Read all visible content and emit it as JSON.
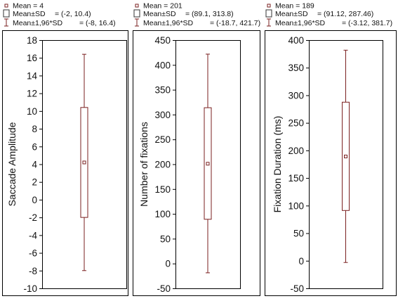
{
  "colors": {
    "box": "#7a1f1f",
    "axis": "#000000",
    "background": "#ffffff"
  },
  "chart_data": [
    {
      "type": "box",
      "ylabel": "Saccade Amplitude",
      "ylim": [
        -10,
        18
      ],
      "yticks": [
        -10,
        -8,
        -6,
        -4,
        -2,
        0,
        2,
        4,
        6,
        8,
        10,
        12,
        14,
        16,
        18
      ],
      "mean": 4.2,
      "sd_range": [
        -2,
        10.4
      ],
      "ci_range": [
        -8,
        16.4
      ],
      "legend": {
        "mean": "Mean = 4",
        "sd_label": "Mean±SD",
        "sd_value": "= (-2, 10.4)",
        "ci_label": "Mean±1,96*SD",
        "ci_value": "= (-8, 16.4)"
      }
    },
    {
      "type": "box",
      "ylabel": "Number of fixations",
      "ylim": [
        -50,
        450
      ],
      "yticks": [
        -50,
        0,
        50,
        100,
        150,
        200,
        250,
        300,
        350,
        400,
        450
      ],
      "mean": 201,
      "sd_range": [
        89.1,
        313.8
      ],
      "ci_range": [
        -18.7,
        421.7
      ],
      "legend": {
        "mean": "Mean = 201",
        "sd_label": "Mean±SD",
        "sd_value": "= (89.1, 313.8)",
        "ci_label": "Mean±1,96*SD",
        "ci_value": "= (-18.7, 421.7)"
      }
    },
    {
      "type": "box",
      "ylabel": "Fixation Duration (ms)",
      "ylim": [
        -50,
        400
      ],
      "yticks": [
        -50,
        0,
        50,
        100,
        150,
        200,
        250,
        300,
        350,
        400
      ],
      "mean": 189,
      "sd_range": [
        91.12,
        287.46
      ],
      "ci_range": [
        -3.12,
        381.7
      ],
      "legend": {
        "mean": "Mean = 189",
        "sd_label": "Mean±SD",
        "sd_value": "= (91.12, 287.46)",
        "ci_label": "Mean±1,96*SD",
        "ci_value": "= (-3.12, 381.7)"
      }
    }
  ]
}
